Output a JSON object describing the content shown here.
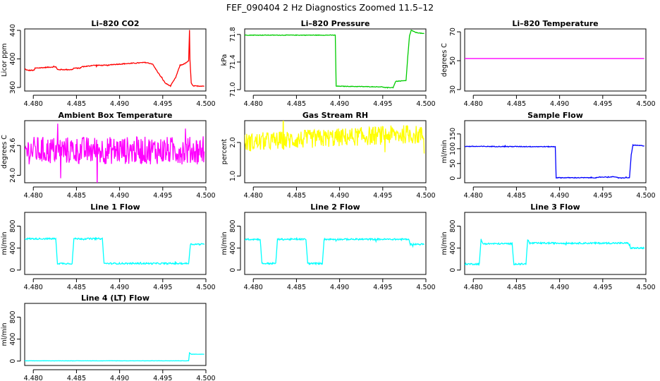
{
  "figure": {
    "title": "FEF_090404  2 Hz Diagnostics Zoomed 11.5–12"
  },
  "chart_data": [
    {
      "type": "line",
      "title": "Li–820 CO2",
      "xlabel": "",
      "ylabel": "Licor ppm",
      "color": "#ff0000",
      "xlim": [
        4.479,
        4.5
      ],
      "ylim": [
        355,
        442
      ],
      "xticks": [
        "4.480",
        "4.485",
        "4.490",
        "4.495",
        "4.500"
      ],
      "yticks": [
        "360",
        "400",
        "440"
      ],
      "noise": 0.6,
      "series": [
        {
          "name": "CO2",
          "points": [
            [
              4.479,
              386
            ],
            [
              4.4793,
              384
            ],
            [
              4.4801,
              384
            ],
            [
              4.4802,
              387
            ],
            [
              4.4826,
              389
            ],
            [
              4.4828,
              385
            ],
            [
              4.4845,
              385
            ],
            [
              4.4847,
              387
            ],
            [
              4.4855,
              387
            ],
            [
              4.4856,
              389
            ],
            [
              4.4865,
              390
            ],
            [
              4.4868,
              391
            ],
            [
              4.4888,
              391
            ],
            [
              4.489,
              392
            ],
            [
              4.493,
              395
            ],
            [
              4.4938,
              393
            ],
            [
              4.4945,
              380
            ],
            [
              4.4953,
              366
            ],
            [
              4.4959,
              362
            ],
            [
              4.4965,
              374
            ],
            [
              4.497,
              391
            ],
            [
              4.4975,
              393
            ],
            [
              4.498,
              397
            ],
            [
              4.4981,
              440
            ],
            [
              4.49815,
              400
            ],
            [
              4.4983,
              366
            ],
            [
              4.4985,
              362
            ],
            [
              4.4998,
              362
            ]
          ]
        }
      ]
    },
    {
      "type": "line",
      "title": "Li–820 Pressure",
      "xlabel": "",
      "ylabel": "kPa",
      "color": "#00cc00",
      "xlim": [
        4.479,
        4.5
      ],
      "ylim": [
        70.98,
        71.88
      ],
      "xticks": [
        "4.480",
        "4.485",
        "4.490",
        "4.495",
        "4.500"
      ],
      "yticks": [
        "71.0",
        "71.4",
        "71.8"
      ],
      "noise": 0.004,
      "series": [
        {
          "name": "Pressure",
          "points": [
            [
              4.479,
              71.79
            ],
            [
              4.4895,
              71.79
            ],
            [
              4.4896,
              71.05
            ],
            [
              4.495,
              71.04
            ],
            [
              4.4952,
              71.03
            ],
            [
              4.4962,
              71.03
            ],
            [
              4.4965,
              71.12
            ],
            [
              4.4977,
              71.13
            ],
            [
              4.4979,
              71.48
            ],
            [
              4.4981,
              71.78
            ],
            [
              4.4983,
              71.86
            ],
            [
              4.4988,
              71.83
            ],
            [
              4.4998,
              71.81
            ]
          ]
        }
      ]
    },
    {
      "type": "line",
      "title": "Li–820 Temperature",
      "xlabel": "",
      "ylabel": "degrees C",
      "color": "#ff00ff",
      "xlim": [
        4.479,
        4.5
      ],
      "ylim": [
        29,
        72
      ],
      "xticks": [
        "4.480",
        "4.485",
        "4.490",
        "4.495",
        "4.500"
      ],
      "yticks": [
        "30",
        "50",
        "70"
      ],
      "noise": 0,
      "series": [
        {
          "name": "Temperature",
          "points": [
            [
              4.479,
              51.5
            ],
            [
              4.4998,
              51.5
            ]
          ]
        }
      ]
    },
    {
      "type": "line",
      "title": "Ambient Box Temperature",
      "xlabel": "",
      "ylabel": "degrees C",
      "color": "#ff00ff",
      "xlim": [
        4.479,
        4.5
      ],
      "ylim": [
        23.85,
        25.1
      ],
      "xticks": [
        "4.480",
        "4.485",
        "4.490",
        "4.495",
        "4.500"
      ],
      "yticks": [
        "24.0",
        "24.6"
      ],
      "noise": 0.28,
      "series": [
        {
          "name": "Box Temperature",
          "points": [
            [
              4.479,
              24.5
            ],
            [
              4.4998,
              24.5
            ]
          ]
        }
      ]
    },
    {
      "type": "line",
      "title": "Gas Stream RH",
      "xlabel": "",
      "ylabel": "percent",
      "color": "#ffff00",
      "xlim": [
        4.479,
        4.5
      ],
      "ylim": [
        0.8,
        2.65
      ],
      "xticks": [
        "4.480",
        "4.485",
        "4.490",
        "4.495",
        "4.500"
      ],
      "yticks": [
        "1.0",
        "2.0"
      ],
      "noise": 0.28,
      "series": [
        {
          "name": "RH",
          "points": [
            [
              4.479,
              2.0
            ],
            [
              4.49,
              2.15
            ],
            [
              4.498,
              2.25
            ],
            [
              4.4998,
              2.2
            ]
          ]
        }
      ]
    },
    {
      "type": "line",
      "title": "Sample Flow",
      "xlabel": "",
      "ylabel": "ml/min",
      "color": "#0000ff",
      "xlim": [
        4.479,
        4.5
      ],
      "ylim": [
        -15,
        195
      ],
      "xticks": [
        "4.480",
        "4.485",
        "4.490",
        "4.495",
        "4.500"
      ],
      "yticks": [
        "0",
        "50",
        "100",
        "150"
      ],
      "noise": 1.2,
      "series": [
        {
          "name": "Sample Flow",
          "points": [
            [
              4.479,
              108
            ],
            [
              4.4895,
              107
            ],
            [
              4.4896,
              2
            ],
            [
              4.4945,
              2
            ],
            [
              4.4946,
              4
            ],
            [
              4.4965,
              5
            ],
            [
              4.4968,
              1
            ],
            [
              4.4981,
              2
            ],
            [
              4.4983,
              80
            ],
            [
              4.4985,
              112
            ],
            [
              4.4998,
              110
            ]
          ]
        }
      ]
    },
    {
      "type": "line",
      "title": "Line 1 Flow",
      "xlabel": "",
      "ylabel": "ml/min",
      "color": "#00ffff",
      "xlim": [
        4.479,
        4.5
      ],
      "ylim": [
        -80,
        1050
      ],
      "xticks": [
        "4.480",
        "4.485",
        "4.490",
        "4.495",
        "4.500"
      ],
      "yticks": [
        "0",
        "400",
        "800"
      ],
      "noise": 14,
      "series": [
        {
          "name": "Line 1",
          "points": [
            [
              4.479,
              570
            ],
            [
              4.4826,
              570
            ],
            [
              4.4828,
              120
            ],
            [
              4.4845,
              120
            ],
            [
              4.4847,
              570
            ],
            [
              4.488,
              570
            ],
            [
              4.4882,
              120
            ],
            [
              4.498,
              120
            ],
            [
              4.4982,
              470
            ],
            [
              4.4998,
              470
            ]
          ]
        }
      ]
    },
    {
      "type": "line",
      "title": "Line 2 Flow",
      "xlabel": "",
      "ylabel": "ml/min",
      "color": "#00ffff",
      "xlim": [
        4.479,
        4.5
      ],
      "ylim": [
        -80,
        1050
      ],
      "xticks": [
        "4.480",
        "4.485",
        "4.490",
        "4.495",
        "4.500"
      ],
      "yticks": [
        "0",
        "400",
        "800"
      ],
      "noise": 14,
      "series": [
        {
          "name": "Line 2",
          "points": [
            [
              4.479,
              560
            ],
            [
              4.4808,
              560
            ],
            [
              4.481,
              120
            ],
            [
              4.4826,
              120
            ],
            [
              4.4828,
              560
            ],
            [
              4.4861,
              560
            ],
            [
              4.4863,
              120
            ],
            [
              4.488,
              120
            ],
            [
              4.4882,
              560
            ],
            [
              4.498,
              560
            ],
            [
              4.4982,
              470
            ],
            [
              4.4998,
              470
            ]
          ]
        }
      ]
    },
    {
      "type": "line",
      "title": "Line 3 Flow",
      "xlabel": "",
      "ylabel": "ml/min",
      "color": "#00ffff",
      "xlim": [
        4.479,
        4.5
      ],
      "ylim": [
        -80,
        1050
      ],
      "xticks": [
        "4.480",
        "4.485",
        "4.490",
        "4.495",
        "4.500"
      ],
      "yticks": [
        "0",
        "400",
        "800"
      ],
      "noise": 14,
      "series": [
        {
          "name": "Line 3",
          "points": [
            [
              4.479,
              110
            ],
            [
              4.4807,
              110
            ],
            [
              4.4809,
              560
            ],
            [
              4.4811,
              480
            ],
            [
              4.4845,
              480
            ],
            [
              4.4847,
              110
            ],
            [
              4.4861,
              110
            ],
            [
              4.4863,
              560
            ],
            [
              4.4865,
              490
            ],
            [
              4.498,
              490
            ],
            [
              4.4982,
              400
            ],
            [
              4.4998,
              400
            ]
          ]
        }
      ]
    },
    {
      "type": "line",
      "title": "Line 4 (LT) Flow",
      "xlabel": "",
      "ylabel": "ml/min",
      "color": "#00ffff",
      "xlim": [
        4.479,
        4.5
      ],
      "ylim": [
        -80,
        1050
      ],
      "xticks": [
        "4.480",
        "4.485",
        "4.490",
        "4.495",
        "4.500"
      ],
      "yticks": [
        "0",
        "400",
        "800"
      ],
      "noise": 2,
      "series": [
        {
          "name": "Line 4",
          "points": [
            [
              4.479,
              5
            ],
            [
              4.498,
              5
            ],
            [
              4.4981,
              150
            ],
            [
              4.4983,
              125
            ],
            [
              4.4998,
              125
            ]
          ]
        }
      ]
    }
  ]
}
